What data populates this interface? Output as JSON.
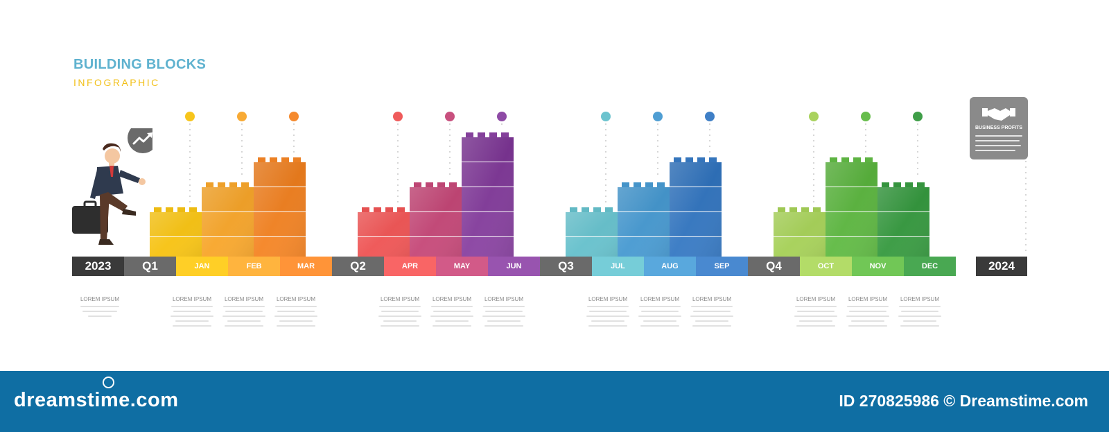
{
  "header": {
    "title": "BUILDING BLOCKS",
    "subtitle": "INFOGRAPHIC"
  },
  "timeline": {
    "start_year": "2023",
    "end_year": "2024",
    "quarters": [
      "Q1",
      "Q2",
      "Q3",
      "Q4"
    ],
    "months": [
      {
        "label": "JAN",
        "color": "#f7c51c",
        "note": "LOREM IPSUM"
      },
      {
        "label": "FEB",
        "color": "#f8aa34",
        "note": "LOREM IPSUM"
      },
      {
        "label": "MAR",
        "color": "#f58a2e",
        "note": "LOREM IPSUM"
      },
      {
        "label": "APR",
        "color": "#ef5b5b",
        "note": "LOREM IPSUM"
      },
      {
        "label": "MAY",
        "color": "#c8507e",
        "note": "LOREM IPSUM"
      },
      {
        "label": "JUN",
        "color": "#8e4aa5",
        "note": "LOREM IPSUM"
      },
      {
        "label": "JUL",
        "color": "#6cc3ce",
        "note": "LOREM IPSUM"
      },
      {
        "label": "AUG",
        "color": "#4f9ed3",
        "note": "LOREM IPSUM"
      },
      {
        "label": "SEP",
        "color": "#3f7fc6",
        "note": "LOREM IPSUM"
      },
      {
        "label": "OCT",
        "color": "#a9d25e",
        "note": "LOREM IPSUM"
      },
      {
        "label": "NOV",
        "color": "#67bd4c",
        "note": "LOREM IPSUM"
      },
      {
        "label": "DEC",
        "color": "#3f9e48",
        "note": "LOREM IPSUM"
      }
    ],
    "colors": {
      "year_bar": "#3a3a3a",
      "quarter_bar": "#6a6a6a"
    }
  },
  "start_note": "LOREM IPSUM",
  "card": {
    "title": "BUSINESS PROFITS",
    "icon": "handshake-icon"
  },
  "character": {
    "speech_icon": "trend-up-icon",
    "prop_icon": "briefcase-icon"
  },
  "footer": {
    "brand": "dreamstime.com",
    "id_text": "ID 270825986 © Dreamstime.com"
  }
}
